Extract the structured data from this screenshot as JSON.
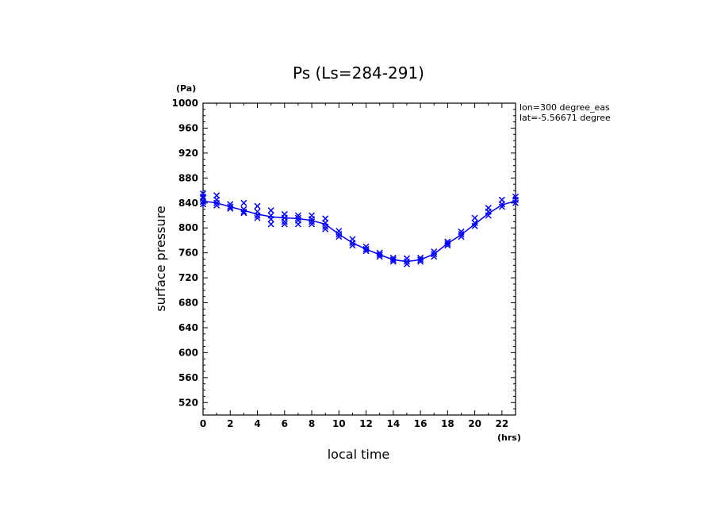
{
  "chart_data": {
    "type": "scatter",
    "title": "Ps (Ls=284-291)",
    "xlabel": "local time",
    "ylabel": "surface pressure",
    "xunit": "(hrs)",
    "yunit": "(Pa)",
    "xlim": [
      0,
      23
    ],
    "ylim": [
      500,
      1000
    ],
    "xticks": [
      0,
      2,
      4,
      6,
      8,
      10,
      12,
      14,
      16,
      18,
      20,
      22
    ],
    "yticks": [
      520,
      560,
      600,
      640,
      680,
      720,
      760,
      800,
      840,
      880,
      920,
      960,
      1000
    ],
    "grid": false,
    "annotations": [
      "lon=300 degree_eas",
      "lat=-5.56671 degree"
    ],
    "color": "#0000ff",
    "series": [
      {
        "kind": "line",
        "x": [
          0,
          1,
          2,
          3,
          4,
          5,
          6,
          7,
          8,
          9,
          10,
          11,
          12,
          13,
          14,
          15,
          16,
          17,
          18,
          19,
          20,
          21,
          22,
          23
        ],
        "y": [
          843,
          840,
          834,
          828,
          822,
          818,
          816,
          815,
          812,
          806,
          790,
          776,
          766,
          757,
          749,
          746,
          749,
          758,
          775,
          789,
          806,
          823,
          837,
          843
        ]
      },
      {
        "kind": "markers",
        "marker": "x",
        "points": [
          [
            0,
            855
          ],
          [
            0,
            848
          ],
          [
            0,
            842
          ],
          [
            0,
            838
          ],
          [
            0,
            850
          ],
          [
            1,
            852
          ],
          [
            1,
            845
          ],
          [
            1,
            840
          ],
          [
            1,
            836
          ],
          [
            2,
            838
          ],
          [
            2,
            834
          ],
          [
            2,
            831
          ],
          [
            3,
            840
          ],
          [
            3,
            830
          ],
          [
            3,
            826
          ],
          [
            3,
            824
          ],
          [
            4,
            835
          ],
          [
            4,
            826
          ],
          [
            4,
            820
          ],
          [
            4,
            816
          ],
          [
            5,
            828
          ],
          [
            5,
            820
          ],
          [
            5,
            814
          ],
          [
            5,
            806
          ],
          [
            6,
            822
          ],
          [
            6,
            816
          ],
          [
            6,
            810
          ],
          [
            6,
            806
          ],
          [
            7,
            820
          ],
          [
            7,
            816
          ],
          [
            7,
            812
          ],
          [
            7,
            806
          ],
          [
            8,
            820
          ],
          [
            8,
            814
          ],
          [
            8,
            810
          ],
          [
            8,
            806
          ],
          [
            9,
            815
          ],
          [
            9,
            808
          ],
          [
            9,
            802
          ],
          [
            9,
            798
          ],
          [
            10,
            795
          ],
          [
            10,
            790
          ],
          [
            10,
            786
          ],
          [
            11,
            782
          ],
          [
            11,
            776
          ],
          [
            11,
            772
          ],
          [
            12,
            770
          ],
          [
            12,
            766
          ],
          [
            12,
            763
          ],
          [
            13,
            760
          ],
          [
            13,
            757
          ],
          [
            13,
            754
          ],
          [
            14,
            752
          ],
          [
            14,
            749
          ],
          [
            14,
            746
          ],
          [
            15,
            751
          ],
          [
            15,
            746
          ],
          [
            15,
            742
          ],
          [
            16,
            752
          ],
          [
            16,
            749
          ],
          [
            16,
            746
          ],
          [
            17,
            762
          ],
          [
            17,
            758
          ],
          [
            17,
            754
          ],
          [
            18,
            778
          ],
          [
            18,
            775
          ],
          [
            18,
            772
          ],
          [
            19,
            794
          ],
          [
            19,
            790
          ],
          [
            19,
            786
          ],
          [
            20,
            816
          ],
          [
            20,
            808
          ],
          [
            20,
            803
          ],
          [
            21,
            832
          ],
          [
            21,
            826
          ],
          [
            21,
            820
          ],
          [
            22,
            845
          ],
          [
            22,
            838
          ],
          [
            22,
            834
          ],
          [
            23,
            850
          ],
          [
            23,
            845
          ],
          [
            23,
            840
          ]
        ]
      }
    ]
  }
}
